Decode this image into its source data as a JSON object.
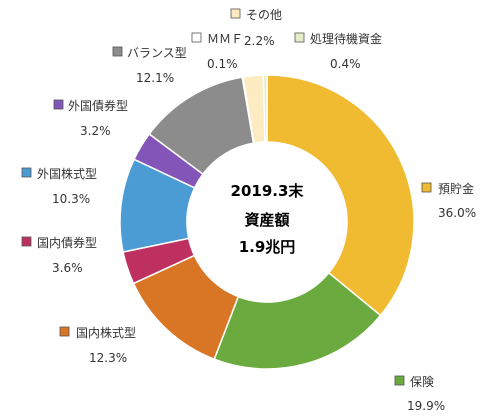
{
  "chart_data": {
    "type": "pie",
    "donut": true,
    "center_text": [
      "2019.3末",
      "資産額",
      "1.9兆円"
    ],
    "slices": [
      {
        "name": "預貯金",
        "value": 36.0,
        "label": "36.0%",
        "color": "#F0BA31"
      },
      {
        "name": "保険",
        "value": 19.9,
        "label": "19.9%",
        "color": "#6BAA3E"
      },
      {
        "name": "国内株式型",
        "value": 12.3,
        "label": "12.3%",
        "color": "#D97625"
      },
      {
        "name": "国内債券型",
        "value": 3.6,
        "label": "3.6%",
        "color": "#BE3060"
      },
      {
        "name": "外国株式型",
        "value": 10.3,
        "label": "10.3%",
        "color": "#4B9BD5"
      },
      {
        "name": "外国債券型",
        "value": 3.2,
        "label": "3.2%",
        "color": "#8355B8"
      },
      {
        "name": "バランス型",
        "value": 12.1,
        "label": "12.1%",
        "color": "#8C8C8C"
      },
      {
        "name": "ＭＭＦ",
        "value": 0.1,
        "label": "0.1%",
        "color": "#FFFFFF"
      },
      {
        "name": "その他",
        "value": 2.2,
        "label": "2.2%",
        "color": "#FDEBC1"
      },
      {
        "name": "処理待機資金",
        "value": 0.4,
        "label": "0.4%",
        "color": "#E3EFC6"
      }
    ]
  }
}
